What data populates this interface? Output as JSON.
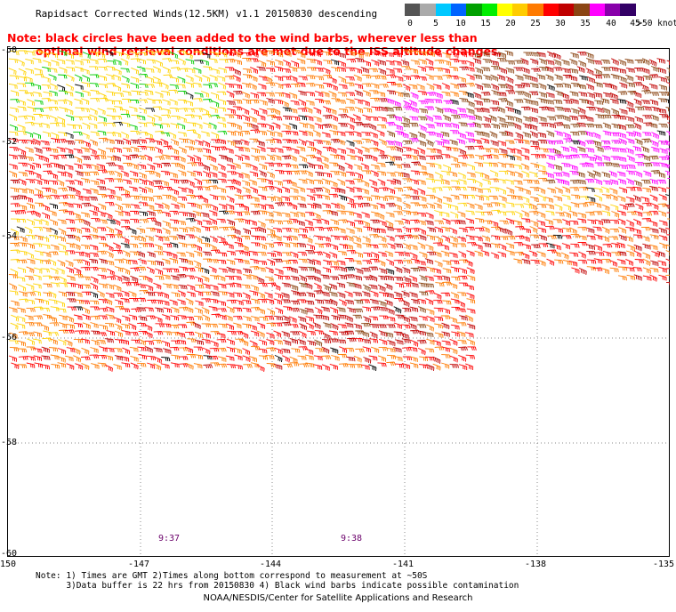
{
  "title": "Rapidsact Corrected Winds(12.5KM) v1.1 20150830 descending",
  "note": {
    "line1": "Note: black circles have been added to the wind barbs, wherever less than",
    "line2": "optimal wind retrieval conditions are met due to the ISS altitude changes."
  },
  "legend": {
    "unit": "knots",
    "labels": [
      "0",
      "5",
      "10",
      "15",
      "20",
      "25",
      "30",
      "35",
      "40",
      "45",
      ">50 knots"
    ],
    "colors": [
      "#555555",
      "#aaaaaa",
      "#00c8ff",
      "#0064ff",
      "#00a000",
      "#00ee00",
      "#ffff00",
      "#ffcc00",
      "#ff7a00",
      "#ff0000",
      "#c00000",
      "#8b4513",
      "#ff00ff",
      "#8800aa",
      "#330066"
    ]
  },
  "axes": {
    "lat_labels": [
      "-50",
      "-52",
      "-54",
      "-56",
      "-58",
      "-60"
    ],
    "lon_labels": [
      "-150",
      "-147",
      "-144",
      "-141",
      "-138",
      "-135"
    ]
  },
  "time_labels": [
    "9:37",
    "9:38"
  ],
  "footnote": "Note: 1) Times are GMT 2)Times along bottom correspond to measurement at ~50S\n      3)Data buffer is 22 hrs from 20150830 4) Black wind barbs indicate possible contamination",
  "credit": "NOAA/NESDIS/Center for Satellite Applications and Research"
}
